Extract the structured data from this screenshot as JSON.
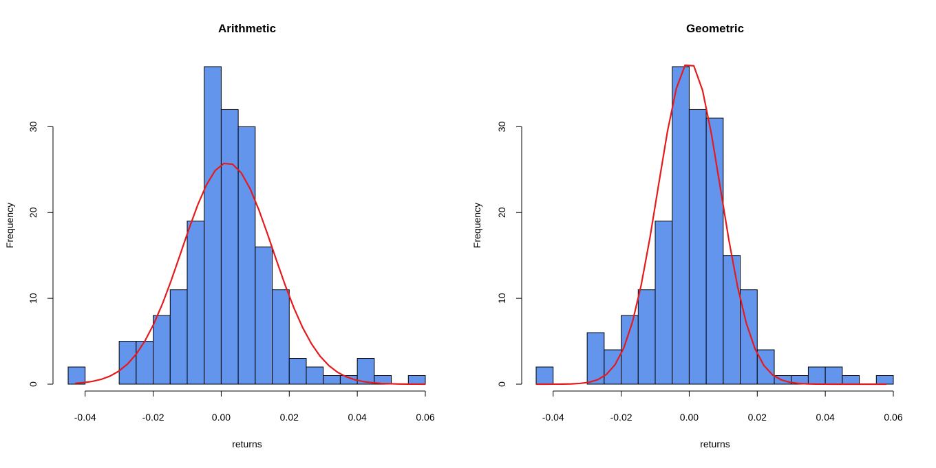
{
  "chart_data": [
    {
      "type": "bar",
      "title": "Arithmetic",
      "xlabel": "returns",
      "ylabel": "Frequency",
      "bin_width": 0.005,
      "bin_start": -0.045,
      "counts": [
        2,
        0,
        0,
        5,
        5,
        8,
        11,
        19,
        37,
        32,
        30,
        16,
        11,
        3,
        2,
        1,
        1,
        3,
        1,
        0,
        1
      ],
      "x_ticks": [
        -0.04,
        -0.02,
        0.0,
        0.02,
        0.04,
        0.06
      ],
      "x_tick_labels": [
        "-0.04",
        "-0.02",
        "0.00",
        "0.02",
        "0.04",
        "0.06"
      ],
      "y_ticks": [
        0,
        10,
        20,
        30
      ],
      "y_tick_labels": [
        "0",
        "10",
        "20",
        "30"
      ],
      "xlim": [
        -0.045,
        0.06
      ],
      "ylim": [
        0,
        37
      ],
      "bar_color": "#6495ED",
      "curve": {
        "color": "#E41A1C",
        "x_range": [
          -0.043,
          0.06
        ],
        "mean": 0.0018,
        "sd": 0.0134,
        "peak": 25.8
      }
    },
    {
      "type": "bar",
      "title": "Geometric",
      "xlabel": "returns",
      "ylabel": "Frequency",
      "bin_width": 0.005,
      "bin_start": -0.045,
      "counts": [
        2,
        0,
        0,
        6,
        4,
        8,
        11,
        19,
        37,
        32,
        31,
        15,
        11,
        4,
        1,
        1,
        2,
        2,
        1,
        0,
        1
      ],
      "x_ticks": [
        -0.04,
        -0.02,
        0.0,
        0.02,
        0.04,
        0.06
      ],
      "x_tick_labels": [
        "-0.04",
        "-0.02",
        "0.00",
        "0.02",
        "0.04",
        "0.06"
      ],
      "y_ticks": [
        0,
        10,
        20,
        30
      ],
      "y_tick_labels": [
        "0",
        "10",
        "20",
        "30"
      ],
      "xlim": [
        -0.045,
        0.06
      ],
      "ylim": [
        0,
        37
      ],
      "bar_color": "#6495ED",
      "curve": {
        "color": "#E41A1C",
        "x_range": [
          -0.045,
          0.058
        ],
        "mean": 0.0,
        "sd": 0.0092,
        "peak": 37.5
      }
    }
  ]
}
